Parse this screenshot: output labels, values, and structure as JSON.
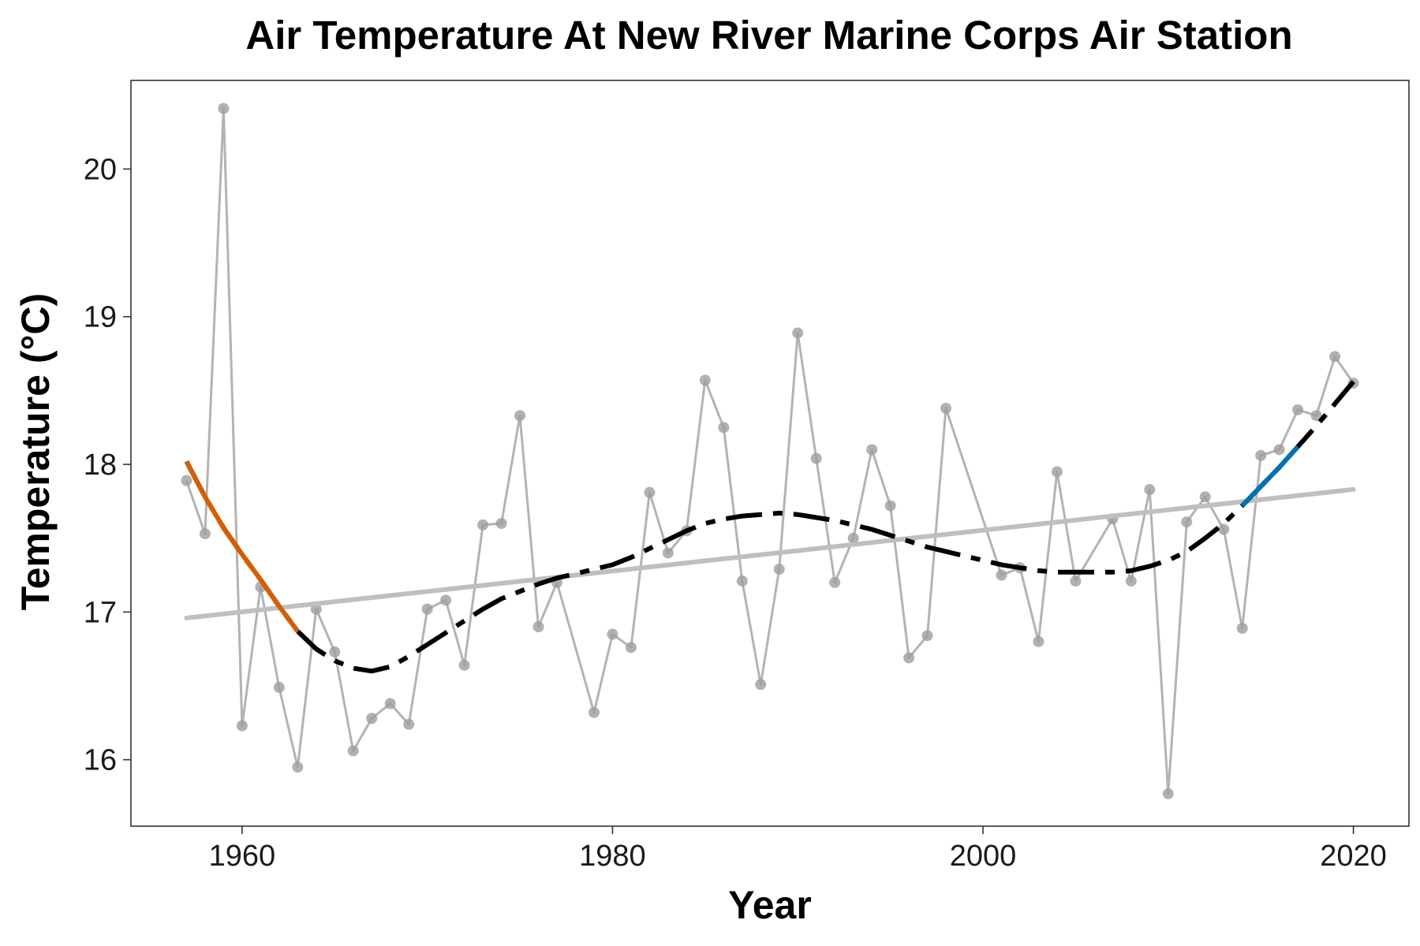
{
  "chart_data": {
    "type": "line",
    "title": "Air Temperature At New River Marine Corps Air Station",
    "xlabel": "Year",
    "ylabel": "Temperature (°C)",
    "xlim": [
      1954,
      2023
    ],
    "ylim": [
      15.55,
      20.6
    ],
    "x_ticks": [
      1960,
      1980,
      2000,
      2020
    ],
    "y_ticks": [
      16,
      17,
      18,
      19,
      20
    ],
    "grid": false,
    "legend": "none",
    "series": [
      {
        "role": "observations",
        "color": "#b3b3b3",
        "x": [
          1957,
          1958,
          1959,
          1960,
          1961,
          1962,
          1963,
          1964,
          1965,
          1966,
          1967,
          1968,
          1969,
          1970,
          1971,
          1972,
          1973,
          1974,
          1975,
          1976,
          1977,
          1979,
          1980,
          1981,
          1982,
          1983,
          1984,
          1985,
          1986,
          1987,
          1988,
          1989,
          1990,
          1991,
          1992,
          1993,
          1994,
          1995,
          1996,
          1997,
          1998,
          2001,
          2002,
          2003,
          2004,
          2005,
          2007,
          2008,
          2009,
          2010,
          2011,
          2012,
          2013,
          2014,
          2015,
          2016,
          2017,
          2018,
          2019,
          2020
        ],
        "y": [
          17.89,
          17.53,
          20.41,
          16.23,
          17.17,
          16.49,
          15.95,
          17.02,
          16.73,
          16.06,
          16.28,
          16.38,
          16.24,
          17.02,
          17.08,
          16.64,
          17.59,
          17.6,
          18.33,
          16.9,
          17.2,
          16.32,
          16.85,
          16.76,
          17.81,
          17.4,
          17.55,
          18.57,
          18.25,
          17.21,
          16.51,
          17.29,
          18.89,
          18.04,
          17.2,
          17.5,
          18.1,
          17.72,
          16.69,
          16.84,
          18.38,
          17.25,
          17.3,
          16.8,
          17.95,
          17.21,
          17.63,
          17.21,
          17.83,
          15.77,
          17.61,
          17.78,
          17.56,
          16.89,
          18.06,
          18.1,
          18.37,
          18.33,
          18.73,
          18.55
        ]
      },
      {
        "role": "linear-trend",
        "color": "#bfbfbf",
        "x": [
          1957,
          2020
        ],
        "y": [
          16.96,
          17.83
        ]
      },
      {
        "role": "smoothed-trend",
        "color": "#000000",
        "x": [
          1957,
          1958,
          1959,
          1960,
          1961,
          1962,
          1963,
          1964,
          1965,
          1966,
          1967,
          1968,
          1969,
          1970,
          1971,
          1972,
          1973,
          1974,
          1975,
          1976,
          1977,
          1978,
          1979,
          1980,
          1981,
          1982,
          1983,
          1984,
          1985,
          1986,
          1987,
          1988,
          1989,
          1990,
          1991,
          1992,
          1993,
          1994,
          1995,
          1996,
          1997,
          1998,
          1999,
          2000,
          2001,
          2002,
          2003,
          2004,
          2005,
          2006,
          2007,
          2008,
          2009,
          2010,
          2011,
          2012,
          2013,
          2014,
          2015,
          2016,
          2017,
          2018,
          2019,
          2020
        ],
        "y": [
          18.02,
          17.78,
          17.57,
          17.39,
          17.22,
          17.04,
          16.87,
          16.75,
          16.67,
          16.62,
          16.6,
          16.63,
          16.7,
          16.78,
          16.86,
          16.94,
          17.02,
          17.09,
          17.14,
          17.19,
          17.23,
          17.26,
          17.29,
          17.32,
          17.37,
          17.43,
          17.49,
          17.55,
          17.6,
          17.63,
          17.65,
          17.66,
          17.67,
          17.66,
          17.64,
          17.62,
          17.59,
          17.56,
          17.52,
          17.48,
          17.44,
          17.41,
          17.38,
          17.35,
          17.32,
          17.3,
          17.28,
          17.27,
          17.27,
          17.27,
          17.27,
          17.28,
          17.31,
          17.35,
          17.41,
          17.5,
          17.6,
          17.72,
          17.85,
          17.98,
          18.12,
          18.26,
          18.41,
          18.56
        ]
      }
    ],
    "highlights": [
      {
        "role": "significant-decrease",
        "color": "#d55e00",
        "x_from": 1957,
        "x_to": 1963
      },
      {
        "role": "significant-increase",
        "color": "#0072b2",
        "x_from": 2014,
        "x_to": 2017
      }
    ]
  }
}
